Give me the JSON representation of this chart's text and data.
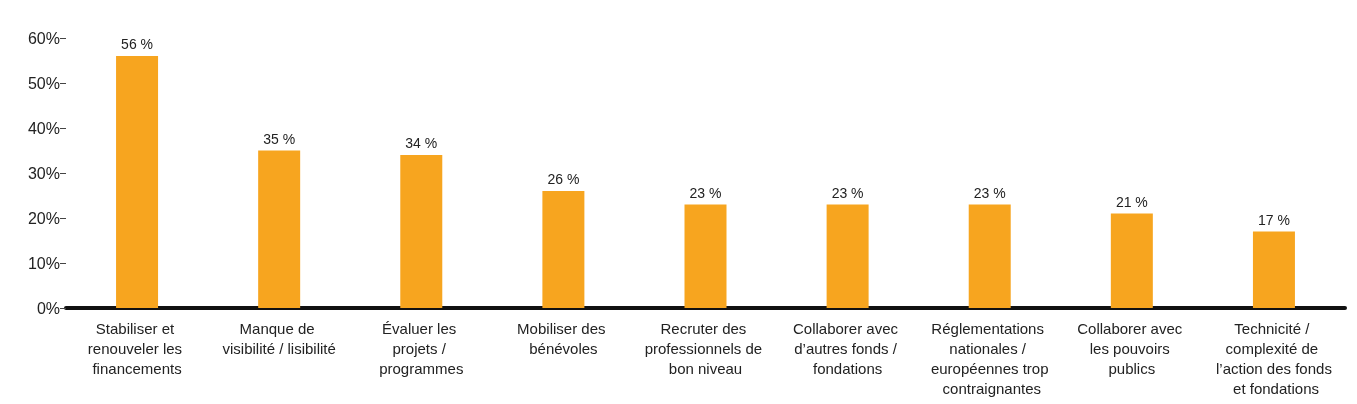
{
  "chart_data": {
    "type": "bar",
    "categories": [
      "Stabiliser et renouveler les financements",
      "Manque de visibilité / lisibilité",
      "Évaluer les projets / programmes",
      "Mobiliser des bénévoles",
      "Recruter des professionnels de bon niveau",
      "Collaborer avec d’autres fonds / fondations",
      "Réglementations nationales / européennes trop contraignantes",
      "Collaborer avec les pouvoirs publics",
      "Technicité / complexité de l’action des fonds et fondations"
    ],
    "values": [
      56,
      35,
      34,
      26,
      23,
      23,
      23,
      21,
      17
    ],
    "value_labels": [
      "56 %",
      "35 %",
      "34 %",
      "26 %",
      "23 %",
      "23 %",
      "23 %",
      "21 %",
      "17 %"
    ],
    "color": "#f7a51f",
    "ylim": [
      0,
      60
    ],
    "yticks": [
      {
        "value": 0,
        "label": "0%"
      },
      {
        "value": 10,
        "label": "10%"
      },
      {
        "value": 20,
        "label": "20%"
      },
      {
        "value": 30,
        "label": "30%"
      },
      {
        "value": 40,
        "label": "40%"
      },
      {
        "value": 50,
        "label": "50%"
      },
      {
        "value": 60,
        "label": "60%"
      }
    ],
    "grid": false
  }
}
